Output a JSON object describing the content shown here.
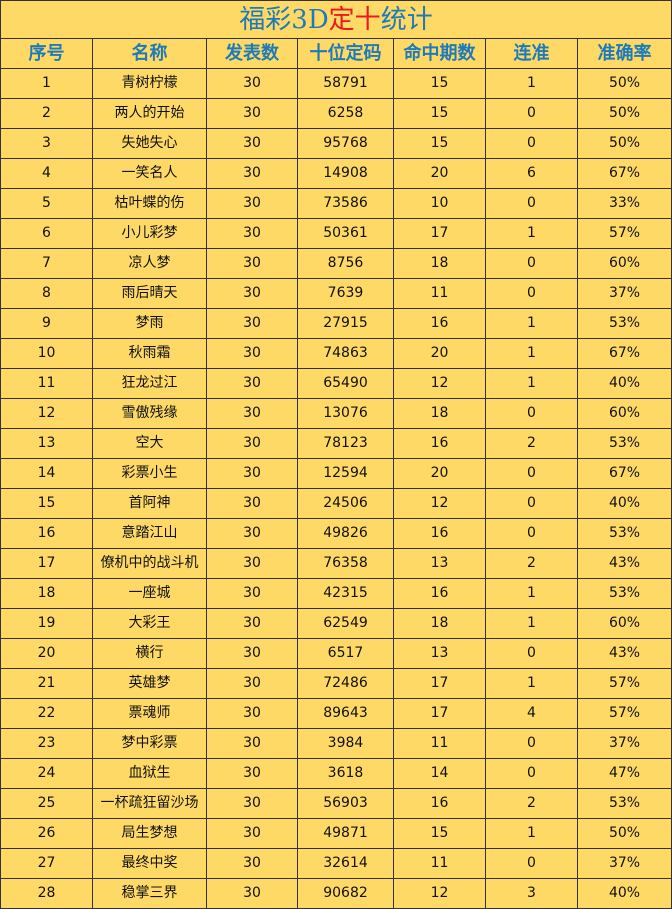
{
  "header": {
    "title_parts": [
      "福彩3D",
      "定十",
      "统计"
    ]
  },
  "table": {
    "columns": [
      "序号",
      "名称",
      "发表数",
      "十位定码",
      "命中期数",
      "连准",
      "准确率"
    ],
    "rows": [
      [
        "1",
        "青树柠檬",
        "30",
        "58791",
        "15",
        "1",
        "50%"
      ],
      [
        "2",
        "两人的开始",
        "30",
        "6258",
        "15",
        "0",
        "50%"
      ],
      [
        "3",
        "失她失心",
        "30",
        "95768",
        "15",
        "0",
        "50%"
      ],
      [
        "4",
        "一笑名人",
        "30",
        "14908",
        "20",
        "6",
        "67%"
      ],
      [
        "5",
        "枯叶蝶的伤",
        "30",
        "73586",
        "10",
        "0",
        "33%"
      ],
      [
        "6",
        "小儿彩梦",
        "30",
        "50361",
        "17",
        "1",
        "57%"
      ],
      [
        "7",
        "凉人梦",
        "30",
        "8756",
        "18",
        "0",
        "60%"
      ],
      [
        "8",
        "雨后晴天",
        "30",
        "7639",
        "11",
        "0",
        "37%"
      ],
      [
        "9",
        "梦雨",
        "30",
        "27915",
        "16",
        "1",
        "53%"
      ],
      [
        "10",
        "秋雨霜",
        "30",
        "74863",
        "20",
        "1",
        "67%"
      ],
      [
        "11",
        "狂龙过江",
        "30",
        "65490",
        "12",
        "1",
        "40%"
      ],
      [
        "12",
        "雪傲残缘",
        "30",
        "13076",
        "18",
        "0",
        "60%"
      ],
      [
        "13",
        "空大",
        "30",
        "78123",
        "16",
        "2",
        "53%"
      ],
      [
        "14",
        "彩票小生",
        "30",
        "12594",
        "20",
        "0",
        "67%"
      ],
      [
        "15",
        "首阿神",
        "30",
        "24506",
        "12",
        "0",
        "40%"
      ],
      [
        "16",
        "意踏江山",
        "30",
        "49826",
        "16",
        "0",
        "53%"
      ],
      [
        "17",
        "僚机中的战斗机",
        "30",
        "76358",
        "13",
        "2",
        "43%"
      ],
      [
        "18",
        "一座城",
        "30",
        "42315",
        "16",
        "1",
        "53%"
      ],
      [
        "19",
        "大彩王",
        "30",
        "62549",
        "18",
        "1",
        "60%"
      ],
      [
        "20",
        "横行",
        "30",
        "6517",
        "13",
        "0",
        "43%"
      ],
      [
        "21",
        "英雄梦",
        "30",
        "72486",
        "17",
        "1",
        "57%"
      ],
      [
        "22",
        "票魂师",
        "30",
        "89643",
        "17",
        "4",
        "57%"
      ],
      [
        "23",
        "梦中彩票",
        "30",
        "3984",
        "11",
        "0",
        "37%"
      ],
      [
        "24",
        "血狱生",
        "30",
        "3618",
        "14",
        "0",
        "47%"
      ],
      [
        "25",
        "一杯疏狂留沙场",
        "30",
        "56903",
        "16",
        "2",
        "53%"
      ],
      [
        "26",
        "局生梦想",
        "30",
        "49871",
        "15",
        "1",
        "50%"
      ],
      [
        "27",
        "最终中奖",
        "30",
        "32614",
        "11",
        "0",
        "37%"
      ],
      [
        "28",
        "稳掌三界",
        "30",
        "90682",
        "12",
        "3",
        "40%"
      ]
    ]
  }
}
